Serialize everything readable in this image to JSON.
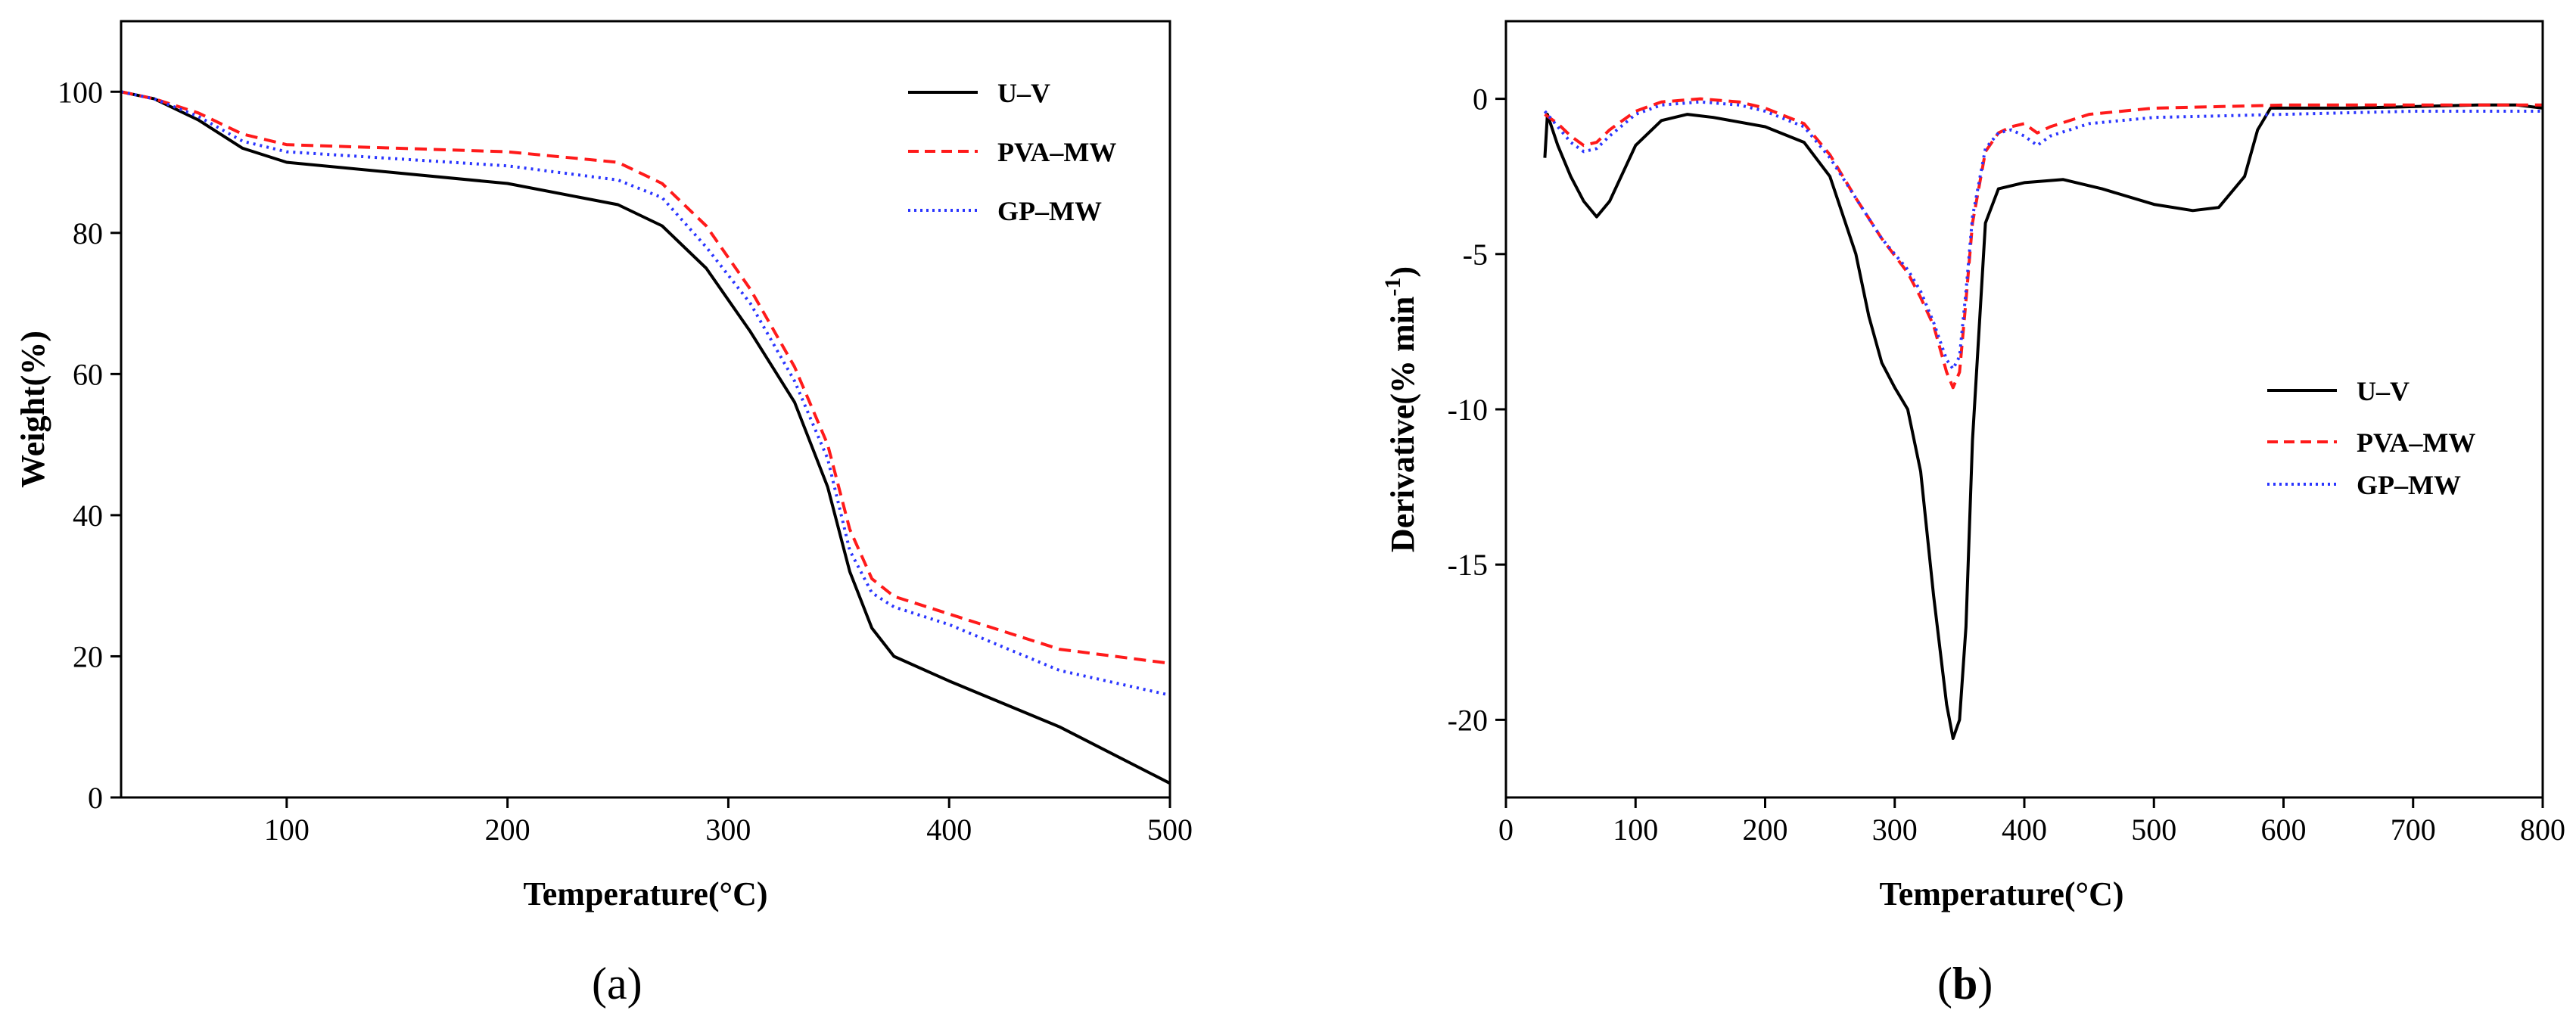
{
  "chart_data": [
    {
      "panel": "a",
      "panel_label": "a",
      "type": "line",
      "title": "",
      "xlabel": "Temperature(°C)",
      "ylabel": "Weight(%)",
      "xlim": [
        25,
        500
      ],
      "ylim": [
        0,
        110
      ],
      "xticks": [
        100,
        200,
        300,
        400,
        500
      ],
      "yticks": [
        0,
        20,
        40,
        60,
        80,
        100
      ],
      "xtick_labels": [
        "100",
        "200",
        "300",
        "400",
        "500"
      ],
      "ytick_labels": [
        "0",
        "20",
        "40",
        "60",
        "80",
        "100"
      ],
      "legend_position": "top-right",
      "series": [
        {
          "name": "U–V",
          "color": "#000000",
          "style": "solid",
          "x": [
            25,
            40,
            60,
            80,
            100,
            150,
            200,
            250,
            270,
            290,
            310,
            330,
            345,
            355,
            365,
            375,
            400,
            450,
            500
          ],
          "y": [
            100,
            99,
            96,
            92,
            90,
            88.5,
            87,
            84,
            81,
            75,
            66,
            56,
            44,
            32,
            24,
            20,
            16.5,
            10,
            2
          ]
        },
        {
          "name": "PVA–MW",
          "color": "#ff1a1a",
          "style": "dashed",
          "x": [
            25,
            40,
            60,
            80,
            100,
            150,
            200,
            250,
            270,
            290,
            310,
            330,
            345,
            355,
            365,
            375,
            400,
            450,
            500
          ],
          "y": [
            100,
            99,
            97,
            94,
            92.5,
            92,
            91.5,
            90,
            87,
            81,
            72,
            61,
            50,
            38,
            31,
            28.5,
            26,
            21,
            19
          ]
        },
        {
          "name": "GP–MW",
          "color": "#2a35ff",
          "style": "dotted",
          "x": [
            25,
            40,
            60,
            80,
            100,
            150,
            200,
            250,
            270,
            290,
            310,
            330,
            345,
            355,
            365,
            375,
            400,
            450,
            500
          ],
          "y": [
            100,
            99,
            96.5,
            93,
            91.5,
            90.5,
            89.5,
            87.5,
            85,
            78,
            70,
            59,
            48,
            35,
            29,
            27,
            24.5,
            18,
            14.5
          ]
        }
      ]
    },
    {
      "panel": "b",
      "panel_label": "b",
      "type": "line",
      "title": "",
      "xlabel": "Temperature(°C)",
      "ylabel": "Derivative(% min",
      "ylabel_sup": "-1",
      "ylabel_end": ")",
      "xlim": [
        0,
        800
      ],
      "ylim": [
        -22.5,
        2.5
      ],
      "xticks": [
        0,
        100,
        200,
        300,
        400,
        500,
        600,
        700,
        800
      ],
      "yticks": [
        0,
        -5,
        -10,
        -15,
        -20
      ],
      "xtick_labels": [
        "0",
        "100",
        "200",
        "300",
        "400",
        "500",
        "600",
        "700",
        "800"
      ],
      "ytick_labels": [
        "0",
        "-5",
        "-10",
        "-15",
        "-20"
      ],
      "legend_position": "center-right",
      "series": [
        {
          "name": "U–V",
          "color": "#000000",
          "style": "solid",
          "x": [
            30,
            32,
            40,
            50,
            60,
            70,
            80,
            100,
            120,
            140,
            160,
            200,
            230,
            250,
            270,
            280,
            290,
            300,
            310,
            320,
            330,
            340,
            345,
            350,
            355,
            360,
            370,
            380,
            400,
            430,
            460,
            500,
            530,
            550,
            570,
            580,
            590,
            650,
            700,
            750,
            780,
            800
          ],
          "y": [
            -1.9,
            -0.5,
            -1.5,
            -2.5,
            -3.3,
            -3.8,
            -3.3,
            -1.5,
            -0.7,
            -0.5,
            -0.6,
            -0.9,
            -1.4,
            -2.5,
            -5,
            -7,
            -8.5,
            -9.3,
            -10,
            -12,
            -16,
            -19.5,
            -20.6,
            -20,
            -17,
            -11,
            -4,
            -2.9,
            -2.7,
            -2.6,
            -2.9,
            -3.4,
            -3.6,
            -3.5,
            -2.5,
            -1,
            -0.3,
            -0.3,
            -0.25,
            -0.2,
            -0.2,
            -0.3
          ]
        },
        {
          "name": "PVA–MW",
          "color": "#ff1a1a",
          "style": "dashed",
          "x": [
            30,
            40,
            50,
            60,
            70,
            80,
            100,
            120,
            150,
            180,
            200,
            230,
            250,
            270,
            290,
            310,
            320,
            330,
            340,
            345,
            350,
            355,
            360,
            370,
            380,
            390,
            400,
            410,
            420,
            450,
            500,
            550,
            600,
            700,
            800
          ],
          "y": [
            -0.5,
            -0.8,
            -1.2,
            -1.5,
            -1.4,
            -1.0,
            -0.4,
            -0.1,
            0,
            -0.1,
            -0.3,
            -0.8,
            -1.8,
            -3.2,
            -4.5,
            -5.6,
            -6.4,
            -7.3,
            -8.8,
            -9.3,
            -8.8,
            -6.5,
            -4,
            -1.7,
            -1.1,
            -0.9,
            -0.8,
            -1.1,
            -0.9,
            -0.5,
            -0.3,
            -0.25,
            -0.2,
            -0.2,
            -0.2
          ]
        },
        {
          "name": "GP–MW",
          "color": "#2a35ff",
          "style": "dotted",
          "x": [
            30,
            40,
            50,
            60,
            70,
            80,
            100,
            120,
            150,
            180,
            200,
            230,
            250,
            270,
            290,
            310,
            320,
            330,
            340,
            345,
            350,
            355,
            360,
            370,
            380,
            390,
            400,
            410,
            420,
            450,
            500,
            550,
            600,
            700,
            800
          ],
          "y": [
            -0.4,
            -0.9,
            -1.4,
            -1.7,
            -1.6,
            -1.2,
            -0.5,
            -0.2,
            -0.1,
            -0.2,
            -0.4,
            -0.9,
            -1.9,
            -3.2,
            -4.5,
            -5.5,
            -6.2,
            -7.2,
            -8.4,
            -8.7,
            -8.3,
            -6.2,
            -3.8,
            -1.6,
            -1.1,
            -1.0,
            -1.2,
            -1.5,
            -1.2,
            -0.8,
            -0.6,
            -0.55,
            -0.5,
            -0.4,
            -0.4
          ]
        }
      ]
    }
  ]
}
